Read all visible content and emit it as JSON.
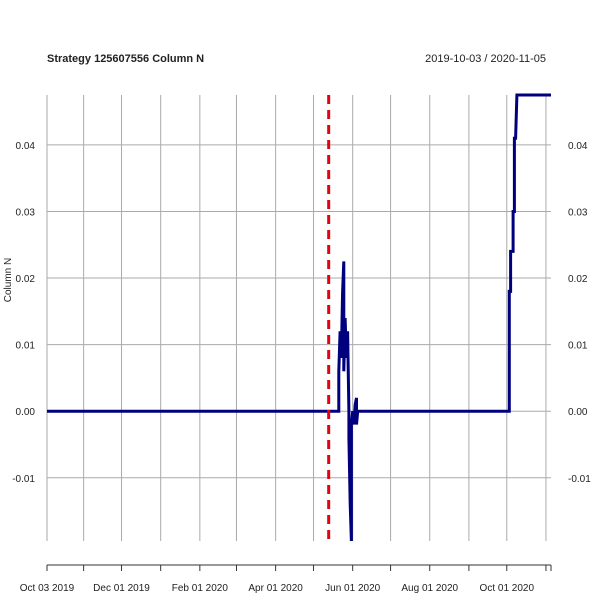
{
  "chart_data": {
    "type": "line",
    "title": "Strategy 125607556 Column N",
    "date_range": "2019-10-03 / 2020-11-05",
    "ylabel": "Column N",
    "xlim": [
      "2019-10-03",
      "2020-11-05"
    ],
    "ylim": [
      -0.0195,
      0.0475
    ],
    "y_ticks": [
      -0.01,
      0.0,
      0.01,
      0.02,
      0.03,
      0.04
    ],
    "y_tick_labels": [
      "-0.01",
      "0.00",
      "0.01",
      "0.02",
      "0.03",
      "0.04"
    ],
    "x_tick_labels": [
      {
        "date": "2019-10-03",
        "label": "Oct 03 2019"
      },
      {
        "date": "2019-12-01",
        "label": "Dec 01 2019"
      },
      {
        "date": "2020-02-01",
        "label": "Feb 01 2020"
      },
      {
        "date": "2020-04-01",
        "label": "Apr 01 2020"
      },
      {
        "date": "2020-06-01",
        "label": "Jun 01 2020"
      },
      {
        "date": "2020-08-01",
        "label": "Aug 01 2020"
      },
      {
        "date": "2020-10-01",
        "label": "Oct 01 2020"
      }
    ],
    "x_grid_dates": [
      "2019-10-03",
      "2019-11-01",
      "2019-12-01",
      "2020-01-01",
      "2020-02-01",
      "2020-03-01",
      "2020-04-01",
      "2020-05-01",
      "2020-06-01",
      "2020-07-01",
      "2020-08-01",
      "2020-09-01",
      "2020-10-01",
      "2020-11-01"
    ],
    "grid": true,
    "vline": {
      "date": "2020-05-13",
      "color": "#e8000b",
      "style": "dashed"
    },
    "series": [
      {
        "color": "#00007f",
        "points": [
          [
            "2019-10-03",
            0.0
          ],
          [
            "2020-05-21",
            0.0
          ],
          [
            "2020-05-21",
            0.006
          ],
          [
            "2020-05-22",
            0.012
          ],
          [
            "2020-05-23",
            0.008
          ],
          [
            "2020-05-24",
            0.018
          ],
          [
            "2020-05-25",
            0.0225
          ],
          [
            "2020-05-25",
            0.006
          ],
          [
            "2020-05-26",
            0.014
          ],
          [
            "2020-05-27",
            0.008
          ],
          [
            "2020-05-28",
            0.012
          ],
          [
            "2020-05-29",
            0.0
          ],
          [
            "2020-05-29",
            -0.004
          ],
          [
            "2020-05-30",
            -0.014
          ],
          [
            "2020-05-31",
            -0.0195
          ],
          [
            "2020-05-31",
            -0.002
          ],
          [
            "2020-06-01",
            0.0
          ],
          [
            "2020-06-02",
            -0.002
          ],
          [
            "2020-06-03",
            0.001
          ],
          [
            "2020-06-04",
            0.002
          ],
          [
            "2020-06-04",
            -0.002
          ],
          [
            "2020-06-05",
            0.0
          ],
          [
            "2020-10-03",
            0.0
          ],
          [
            "2020-10-03",
            0.018
          ],
          [
            "2020-10-04",
            0.018
          ],
          [
            "2020-10-04",
            0.024
          ],
          [
            "2020-10-06",
            0.024
          ],
          [
            "2020-10-06",
            0.03
          ],
          [
            "2020-10-07",
            0.03
          ],
          [
            "2020-10-07",
            0.041
          ],
          [
            "2020-10-08",
            0.041
          ],
          [
            "2020-10-09",
            0.0475
          ],
          [
            "2020-11-05",
            0.0475
          ]
        ]
      }
    ],
    "colors": {
      "line": "#00007f",
      "vline": "#e8000b",
      "grid": "#aaaaaa"
    }
  }
}
